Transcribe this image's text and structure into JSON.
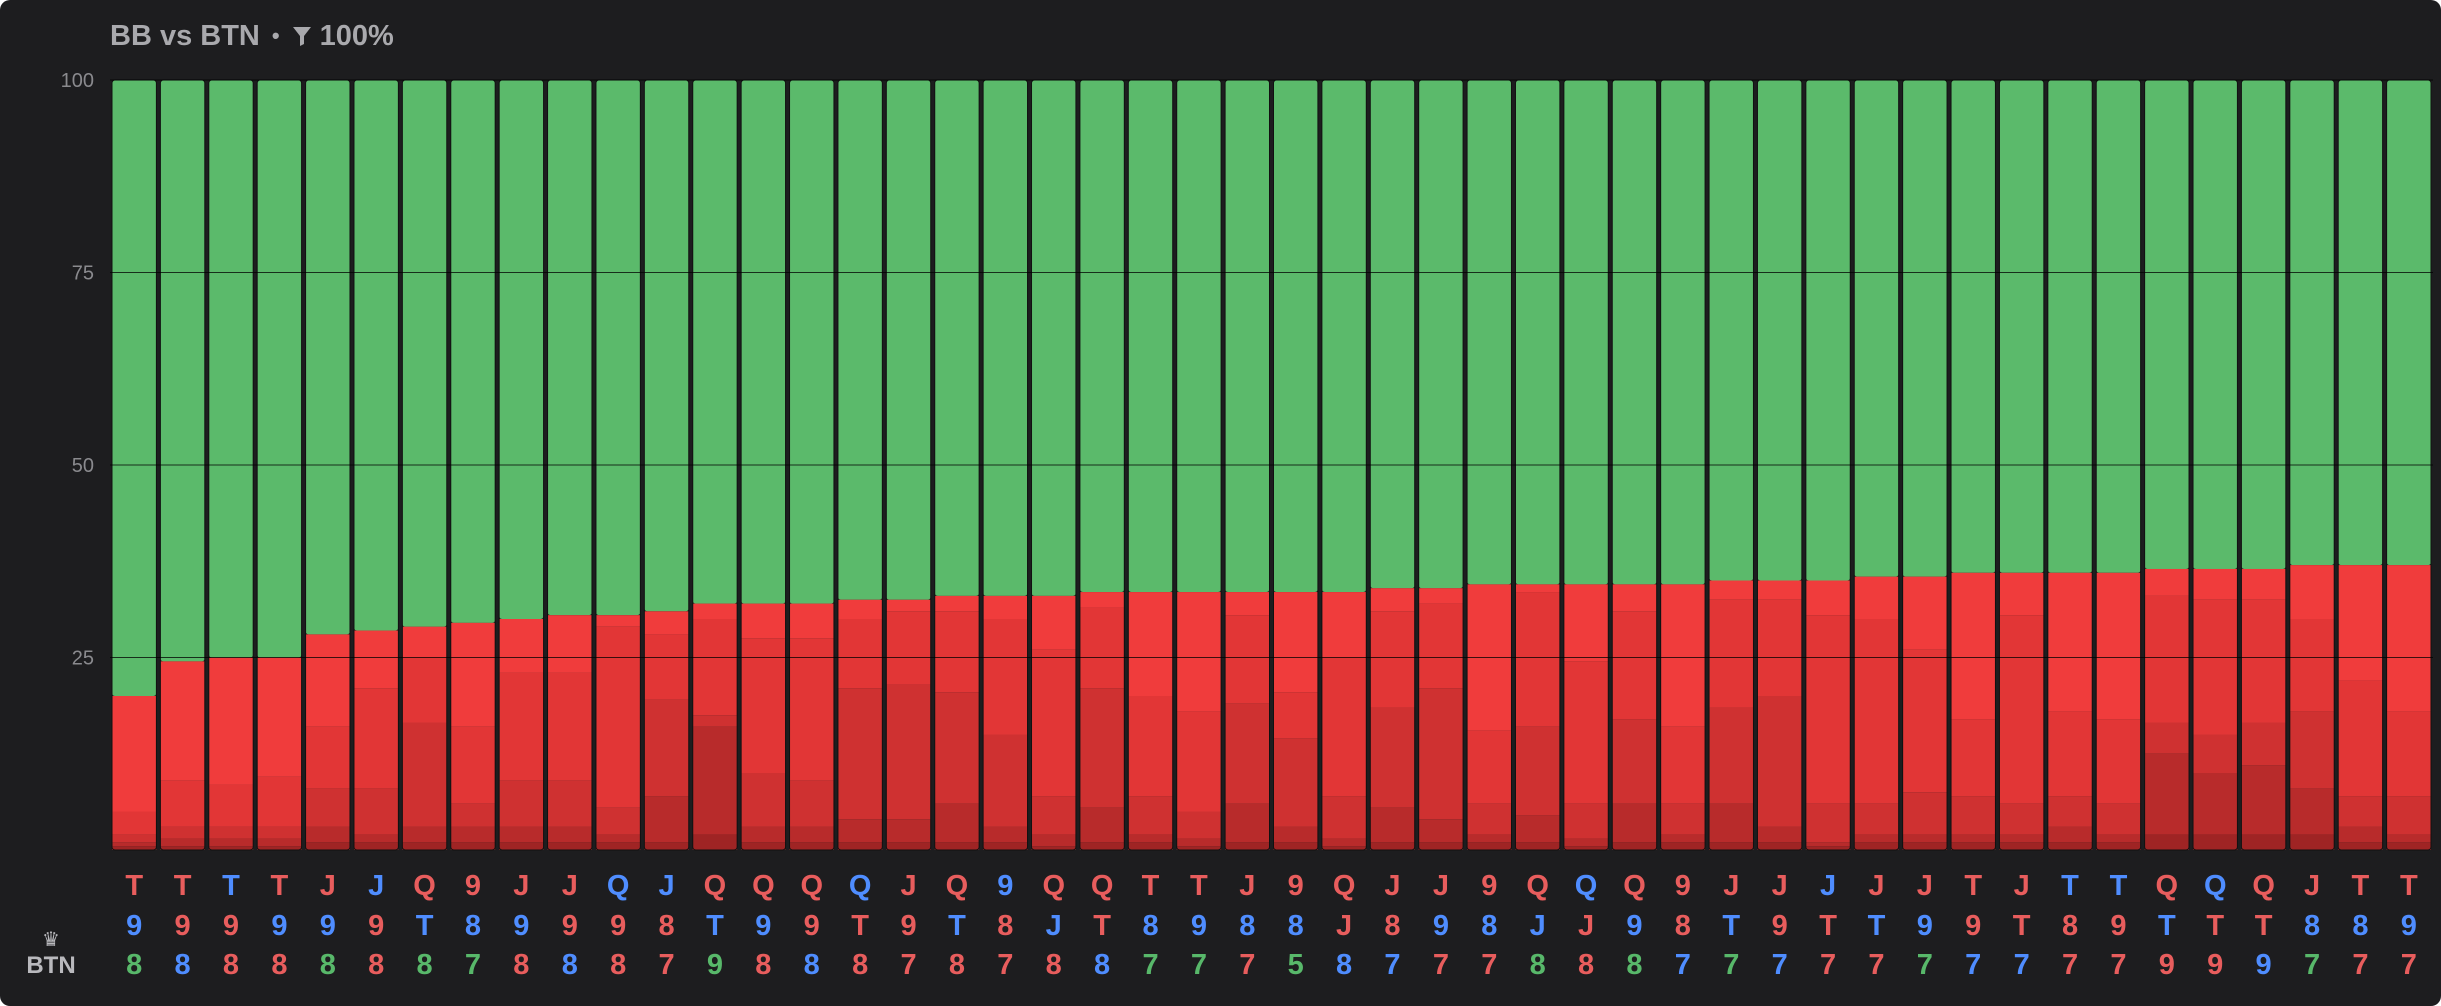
{
  "header": {
    "title": "BB vs BTN",
    "separator": "•",
    "filter_value": "100%",
    "filter_icon": "filter-funnel-icon"
  },
  "legend": {
    "player_label": "BTN",
    "player_icon": "crown-icon"
  },
  "colors": {
    "background": "#1d1d1f",
    "green": "#5bba6b",
    "red_shades": [
      "#f03c3c",
      "#e23636",
      "#cf3131",
      "#b82b2b",
      "#9f2424",
      "#7e1c1c"
    ],
    "suit_red": "#e85d5d",
    "suit_blue": "#4f8dff",
    "suit_green": "#58b86a",
    "grid": "#000000",
    "tick": "#8a8a8e"
  },
  "chart_data": {
    "type": "bar",
    "stacked": true,
    "yticks": [
      100,
      75,
      50,
      25
    ],
    "ylim": [
      0,
      100
    ],
    "grid": true,
    "categories": [
      [
        [
          "T",
          "r"
        ],
        [
          "9",
          "b"
        ],
        [
          "8",
          "g"
        ]
      ],
      [
        [
          "T",
          "r"
        ],
        [
          "9",
          "r"
        ],
        [
          "8",
          "b"
        ]
      ],
      [
        [
          "T",
          "b"
        ],
        [
          "9",
          "r"
        ],
        [
          "8",
          "r"
        ]
      ],
      [
        [
          "T",
          "r"
        ],
        [
          "9",
          "b"
        ],
        [
          "8",
          "r"
        ]
      ],
      [
        [
          "J",
          "r"
        ],
        [
          "9",
          "b"
        ],
        [
          "8",
          "g"
        ]
      ],
      [
        [
          "J",
          "b"
        ],
        [
          "9",
          "r"
        ],
        [
          "8",
          "r"
        ]
      ],
      [
        [
          "Q",
          "r"
        ],
        [
          "T",
          "b"
        ],
        [
          "8",
          "g"
        ]
      ],
      [
        [
          "9",
          "r"
        ],
        [
          "8",
          "b"
        ],
        [
          "7",
          "g"
        ]
      ],
      [
        [
          "J",
          "r"
        ],
        [
          "9",
          "b"
        ],
        [
          "8",
          "r"
        ]
      ],
      [
        [
          "J",
          "r"
        ],
        [
          "9",
          "r"
        ],
        [
          "8",
          "b"
        ]
      ],
      [
        [
          "Q",
          "b"
        ],
        [
          "9",
          "r"
        ],
        [
          "8",
          "r"
        ]
      ],
      [
        [
          "J",
          "b"
        ],
        [
          "8",
          "r"
        ],
        [
          "7",
          "r"
        ]
      ],
      [
        [
          "Q",
          "r"
        ],
        [
          "T",
          "b"
        ],
        [
          "9",
          "g"
        ]
      ],
      [
        [
          "Q",
          "r"
        ],
        [
          "9",
          "b"
        ],
        [
          "8",
          "r"
        ]
      ],
      [
        [
          "Q",
          "r"
        ],
        [
          "9",
          "r"
        ],
        [
          "8",
          "b"
        ]
      ],
      [
        [
          "Q",
          "b"
        ],
        [
          "T",
          "r"
        ],
        [
          "8",
          "r"
        ]
      ],
      [
        [
          "J",
          "r"
        ],
        [
          "9",
          "r"
        ],
        [
          "7",
          "r"
        ]
      ],
      [
        [
          "Q",
          "r"
        ],
        [
          "T",
          "b"
        ],
        [
          "8",
          "r"
        ]
      ],
      [
        [
          "9",
          "b"
        ],
        [
          "8",
          "r"
        ],
        [
          "7",
          "r"
        ]
      ],
      [
        [
          "Q",
          "r"
        ],
        [
          "J",
          "b"
        ],
        [
          "8",
          "r"
        ]
      ],
      [
        [
          "Q",
          "r"
        ],
        [
          "T",
          "r"
        ],
        [
          "8",
          "b"
        ]
      ],
      [
        [
          "T",
          "r"
        ],
        [
          "8",
          "b"
        ],
        [
          "7",
          "g"
        ]
      ],
      [
        [
          "T",
          "r"
        ],
        [
          "9",
          "b"
        ],
        [
          "7",
          "g"
        ]
      ],
      [
        [
          "J",
          "r"
        ],
        [
          "8",
          "b"
        ],
        [
          "7",
          "r"
        ]
      ],
      [
        [
          "9",
          "r"
        ],
        [
          "8",
          "b"
        ],
        [
          "5",
          "g"
        ]
      ],
      [
        [
          "Q",
          "r"
        ],
        [
          "J",
          "r"
        ],
        [
          "8",
          "b"
        ]
      ],
      [
        [
          "J",
          "r"
        ],
        [
          "8",
          "r"
        ],
        [
          "7",
          "b"
        ]
      ],
      [
        [
          "J",
          "r"
        ],
        [
          "9",
          "b"
        ],
        [
          "7",
          "r"
        ]
      ],
      [
        [
          "9",
          "r"
        ],
        [
          "8",
          "b"
        ],
        [
          "7",
          "r"
        ]
      ],
      [
        [
          "Q",
          "r"
        ],
        [
          "J",
          "b"
        ],
        [
          "8",
          "g"
        ]
      ],
      [
        [
          "Q",
          "b"
        ],
        [
          "J",
          "r"
        ],
        [
          "8",
          "r"
        ]
      ],
      [
        [
          "Q",
          "r"
        ],
        [
          "9",
          "b"
        ],
        [
          "8",
          "g"
        ]
      ],
      [
        [
          "9",
          "r"
        ],
        [
          "8",
          "r"
        ],
        [
          "7",
          "b"
        ]
      ],
      [
        [
          "J",
          "r"
        ],
        [
          "T",
          "b"
        ],
        [
          "7",
          "g"
        ]
      ],
      [
        [
          "J",
          "r"
        ],
        [
          "9",
          "r"
        ],
        [
          "7",
          "b"
        ]
      ],
      [
        [
          "J",
          "b"
        ],
        [
          "T",
          "r"
        ],
        [
          "7",
          "r"
        ]
      ],
      [
        [
          "J",
          "r"
        ],
        [
          "T",
          "b"
        ],
        [
          "7",
          "r"
        ]
      ],
      [
        [
          "J",
          "r"
        ],
        [
          "9",
          "b"
        ],
        [
          "7",
          "g"
        ]
      ],
      [
        [
          "T",
          "r"
        ],
        [
          "9",
          "r"
        ],
        [
          "7",
          "b"
        ]
      ],
      [
        [
          "J",
          "r"
        ],
        [
          "T",
          "r"
        ],
        [
          "7",
          "b"
        ]
      ],
      [
        [
          "T",
          "b"
        ],
        [
          "8",
          "r"
        ],
        [
          "7",
          "r"
        ]
      ],
      [
        [
          "T",
          "b"
        ],
        [
          "9",
          "r"
        ],
        [
          "7",
          "r"
        ]
      ],
      [
        [
          "Q",
          "r"
        ],
        [
          "T",
          "b"
        ],
        [
          "9",
          "r"
        ]
      ],
      [
        [
          "Q",
          "b"
        ],
        [
          "T",
          "r"
        ],
        [
          "9",
          "r"
        ]
      ],
      [
        [
          "Q",
          "r"
        ],
        [
          "T",
          "r"
        ],
        [
          "9",
          "b"
        ]
      ],
      [
        [
          "J",
          "r"
        ],
        [
          "8",
          "b"
        ],
        [
          "7",
          "g"
        ]
      ],
      [
        [
          "T",
          "r"
        ],
        [
          "8",
          "b"
        ],
        [
          "7",
          "r"
        ]
      ],
      [
        [
          "T",
          "r"
        ],
        [
          "9",
          "b"
        ],
        [
          "7",
          "r"
        ]
      ]
    ],
    "stack_boundaries": [
      [
        20,
        5,
        2,
        1,
        0.5
      ],
      [
        24.5,
        9,
        3,
        1.5,
        0.5
      ],
      [
        25,
        8.5,
        3,
        1.5,
        0.5
      ],
      [
        25,
        9.5,
        3,
        1.5,
        0.5
      ],
      [
        28,
        16,
        8,
        3,
        1
      ],
      [
        28.5,
        21,
        8,
        2,
        1
      ],
      [
        29,
        25,
        16.5,
        3,
        1
      ],
      [
        29.5,
        16,
        6,
        3,
        1
      ],
      [
        30,
        23,
        9,
        3,
        1
      ],
      [
        30.5,
        23,
        9,
        3,
        1
      ],
      [
        30.5,
        29,
        5.5,
        2,
        1
      ],
      [
        31,
        28,
        19.5,
        7,
        1
      ],
      [
        32,
        30,
        17.5,
        16,
        2
      ],
      [
        32,
        27.5,
        10,
        3,
        1
      ],
      [
        32,
        27.5,
        9,
        3,
        1
      ],
      [
        32.5,
        30,
        21,
        4,
        1
      ],
      [
        32.5,
        31,
        21.5,
        4,
        1
      ],
      [
        33,
        31,
        20.5,
        6,
        1
      ],
      [
        33,
        30,
        15,
        3,
        1
      ],
      [
        33,
        26,
        7,
        2,
        0.5
      ],
      [
        33.5,
        31.5,
        21,
        5.5,
        1
      ],
      [
        33.5,
        20,
        7,
        2,
        1
      ],
      [
        33.5,
        18,
        5,
        1.5,
        0.5
      ],
      [
        33.5,
        30.5,
        19,
        6,
        1
      ],
      [
        33.5,
        20.5,
        14.5,
        3,
        1
      ],
      [
        33.5,
        25,
        7,
        1.5,
        0.5
      ],
      [
        34,
        31,
        18.5,
        5.5,
        1
      ],
      [
        34,
        32,
        21,
        4,
        1
      ],
      [
        34.5,
        15.5,
        6,
        2,
        1
      ],
      [
        34.5,
        33.5,
        16,
        4.5,
        1
      ],
      [
        34.5,
        24.5,
        6,
        1.5,
        0.5
      ],
      [
        34.5,
        31,
        17,
        6,
        1
      ],
      [
        34.5,
        16,
        6,
        2,
        1
      ],
      [
        35,
        32.5,
        18.5,
        6,
        1
      ],
      [
        35,
        32.5,
        20,
        3,
        1
      ],
      [
        35,
        30.5,
        6,
        1,
        0.5
      ],
      [
        35.5,
        30,
        6,
        2,
        1
      ],
      [
        35.5,
        26,
        7.5,
        2,
        1
      ],
      [
        36,
        17,
        7,
        2,
        1
      ],
      [
        36,
        30.5,
        6,
        2,
        1
      ],
      [
        36,
        18,
        7,
        3,
        1
      ],
      [
        36,
        17,
        6,
        2,
        1
      ],
      [
        36.5,
        33,
        16.5,
        12.5,
        2
      ],
      [
        36.5,
        32.5,
        15,
        10,
        2
      ],
      [
        36.5,
        32.5,
        16.5,
        11,
        2
      ],
      [
        37,
        30,
        18,
        8,
        2
      ],
      [
        37,
        22,
        7,
        3,
        1
      ],
      [
        37,
        18,
        7,
        2,
        1
      ]
    ]
  }
}
